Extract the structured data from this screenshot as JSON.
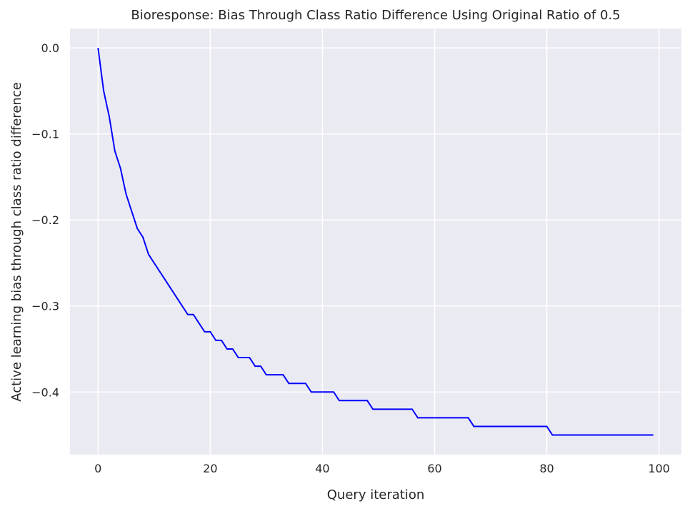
{
  "chart_data": {
    "type": "line",
    "title": "Bioresponse: Bias Through Class Ratio Difference Using Original Ratio of 0.5",
    "xlabel": "Query iteration",
    "ylabel": "Active learning bias through class ratio difference",
    "xlim": [
      -5,
      104
    ],
    "ylim": [
      -0.4728,
      0.0225
    ],
    "xticks": [
      0,
      20,
      40,
      60,
      80,
      100
    ],
    "yticks": [
      0.0,
      -0.1,
      -0.2,
      -0.3,
      -0.4
    ],
    "grid": true,
    "colors": {
      "background": "#eaeaf2",
      "grid": "#ffffff",
      "line": "#0000ff",
      "text": "#262626"
    },
    "series": [
      {
        "x": [
          0,
          1,
          2,
          3,
          4,
          5,
          6,
          7,
          8,
          9,
          16,
          17,
          19,
          20,
          21,
          22,
          23,
          24,
          25,
          26,
          27,
          28,
          29,
          30,
          31,
          32,
          33,
          34,
          35,
          36,
          37,
          38,
          39,
          40,
          41,
          42,
          43,
          44,
          45,
          46,
          47,
          48,
          49,
          50,
          56,
          57,
          58,
          66,
          67,
          68,
          80,
          81,
          99
        ],
        "y": [
          0.0,
          -0.05,
          -0.08,
          -0.12,
          -0.14,
          -0.17,
          -0.19,
          -0.21,
          -0.22,
          -0.24,
          -0.31,
          -0.31,
          -0.33,
          -0.33,
          -0.34,
          -0.34,
          -0.35,
          -0.35,
          -0.36,
          -0.36,
          -0.36,
          -0.37,
          -0.37,
          -0.38,
          -0.38,
          -0.38,
          -0.38,
          -0.39,
          -0.39,
          -0.39,
          -0.39,
          -0.4,
          -0.4,
          -0.4,
          -0.4,
          -0.4,
          -0.41,
          -0.41,
          -0.41,
          -0.41,
          -0.41,
          -0.41,
          -0.42,
          -0.42,
          -0.42,
          -0.43,
          -0.43,
          -0.43,
          -0.44,
          -0.44,
          -0.44,
          -0.45,
          -0.45
        ]
      }
    ]
  }
}
